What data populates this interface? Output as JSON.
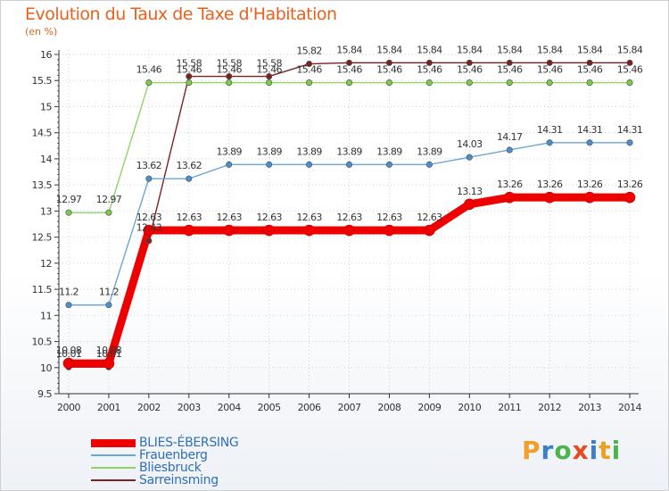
{
  "header": {
    "title": "Evolution du Taux de Taxe d'Habitation",
    "unit": "(en %)"
  },
  "brand": {
    "letters": [
      "P",
      "r",
      "o",
      "x",
      "i",
      "t",
      "i"
    ],
    "colors": [
      "#f0a02a",
      "#3a7fc8",
      "#4bb54b",
      "#e84a20",
      "#3a7fc8",
      "#e7a222",
      "#4bb54b"
    ]
  },
  "chart_data": {
    "type": "line",
    "title": "Evolution du Taux de Taxe d'Habitation",
    "ylabel": "(en %)",
    "xlabel": "",
    "ylim": [
      9.5,
      16
    ],
    "yticks": [
      "9.5",
      "10",
      "10.5",
      "11",
      "11.5",
      "12",
      "12.5",
      "13",
      "13.5",
      "14",
      "14.5",
      "15",
      "15.5",
      "16"
    ],
    "categories": [
      "2000",
      "2001",
      "2002",
      "2003",
      "2004",
      "2005",
      "2006",
      "2007",
      "2008",
      "2009",
      "2010",
      "2011",
      "2012",
      "2013",
      "2014"
    ],
    "series": [
      {
        "name": "Sarreinsming",
        "color": "#7a2121",
        "marker": "#7a2121",
        "width": 1.4,
        "values": [
          10.01,
          10.01,
          12.43,
          15.58,
          15.58,
          15.58,
          15.82,
          15.84,
          15.84,
          15.84,
          15.84,
          15.84,
          15.84,
          15.84,
          15.84
        ],
        "labels": [
          "10.01",
          "10.01",
          "12.43",
          "15.58",
          "15.58",
          "15.58",
          "15.82",
          "15.84",
          "15.84",
          "15.84",
          "15.84",
          "15.84",
          "15.84",
          "15.84",
          "15.84"
        ]
      },
      {
        "name": "Bliesbruck",
        "color": "#8fd36b",
        "marker": "#7ccc4a",
        "width": 1.4,
        "values": [
          12.97,
          12.97,
          15.46,
          15.46,
          15.46,
          15.46,
          15.46,
          15.46,
          15.46,
          15.46,
          15.46,
          15.46,
          15.46,
          15.46,
          15.46
        ],
        "labels": [
          "12.97",
          "12.97",
          "15.46",
          "15.46",
          "15.46",
          "15.46",
          "15.46",
          "15.46",
          "15.46",
          "15.46",
          "15.46",
          "15.46",
          "15.46",
          "15.46",
          "15.46"
        ]
      },
      {
        "name": "Frauenberg",
        "color": "#6aa6d6",
        "marker": "#4a90d0",
        "width": 1.4,
        "values": [
          11.2,
          11.2,
          13.62,
          13.62,
          13.89,
          13.89,
          13.89,
          13.89,
          13.89,
          13.89,
          14.03,
          14.17,
          14.31,
          14.31,
          14.31
        ],
        "labels": [
          "11.2",
          "11.2",
          "13.62",
          "13.62",
          "13.89",
          "13.89",
          "13.89",
          "13.89",
          "13.89",
          "13.89",
          "14.03",
          "14.17",
          "14.31",
          "14.31",
          "14.31"
        ]
      },
      {
        "name": "BLIES-ÉBERSING",
        "color": "#ee0000",
        "marker": "#ee0000",
        "width": 9,
        "values": [
          10.08,
          10.08,
          12.63,
          12.63,
          12.63,
          12.63,
          12.63,
          12.63,
          12.63,
          12.63,
          13.13,
          13.26,
          13.26,
          13.26,
          13.26
        ],
        "labels": [
          "10.08",
          "10.08",
          "12.63",
          "12.63",
          "12.63",
          "12.63",
          "12.63",
          "12.63",
          "12.63",
          "12.63",
          "13.13",
          "13.26",
          "13.26",
          "13.26",
          "13.26"
        ]
      }
    ],
    "legend": [
      {
        "name": "BLIES-ÉBERSING",
        "color": "#ee0000",
        "thickness": 9
      },
      {
        "name": "Frauenberg",
        "color": "#6aa6d6",
        "thickness": 2
      },
      {
        "name": "Bliesbruck",
        "color": "#8fd36b",
        "thickness": 2
      },
      {
        "name": "Sarreinsming",
        "color": "#7a2121",
        "thickness": 2
      }
    ]
  }
}
